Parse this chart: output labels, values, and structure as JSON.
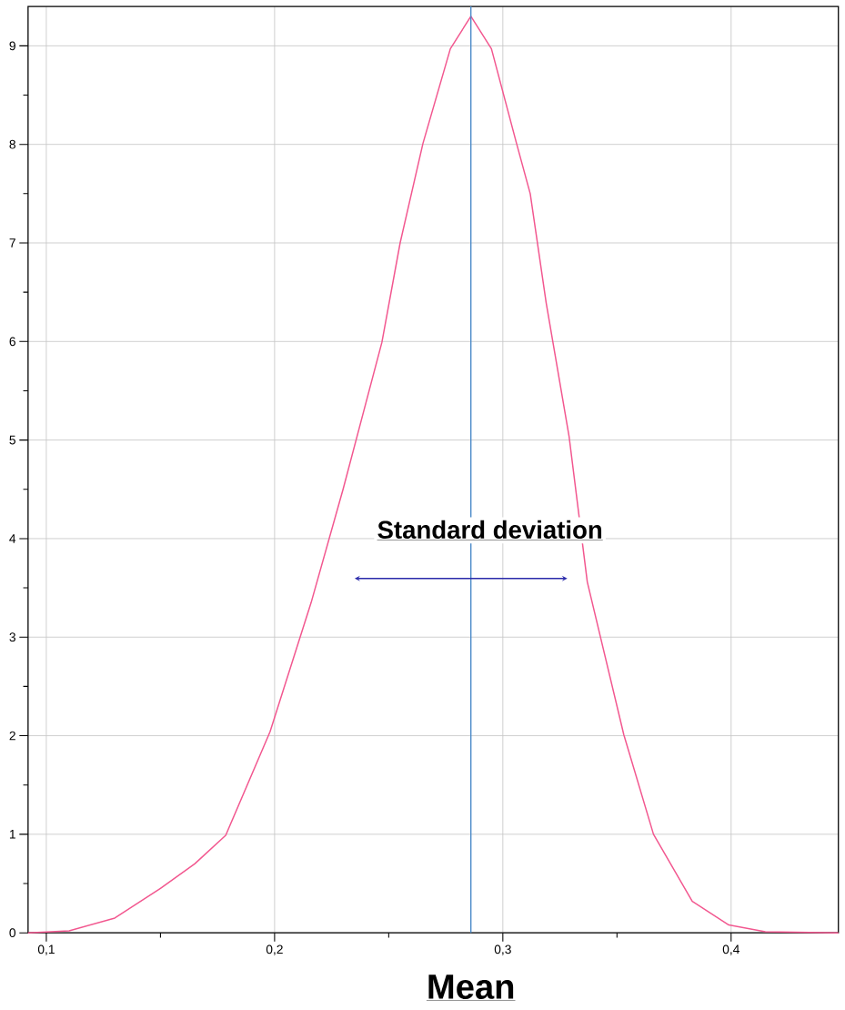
{
  "chart_data": {
    "type": "line",
    "color": "#f2578f",
    "x": [
      0.092,
      0.11,
      0.13,
      0.15,
      0.165,
      0.1786,
      0.198,
      0.216,
      0.23,
      0.247,
      0.255,
      0.265,
      0.277,
      0.286,
      0.295,
      0.306,
      0.312,
      0.319,
      0.329,
      0.337,
      0.353,
      0.366,
      0.383,
      0.399,
      0.415,
      0.447
    ],
    "values": [
      0,
      0.02,
      0.15,
      0.45,
      0.7,
      0.99,
      2.04,
      3.35,
      4.5,
      5.99,
      7.0,
      8.01,
      8.97,
      9.3,
      8.97,
      8.01,
      7.5,
      6.39,
      5.04,
      3.56,
      2.01,
      1.0,
      0.32,
      0.08,
      0.01,
      0
    ],
    "xlim": [
      0.092,
      0.447
    ],
    "ylim": [
      0,
      9.4
    ],
    "xticks": [
      {
        "value": 0.1,
        "label": "0,1"
      },
      {
        "value": 0.15,
        "label": null
      },
      {
        "value": 0.2,
        "label": "0,2"
      },
      {
        "value": 0.25,
        "label": null
      },
      {
        "value": 0.3,
        "label": "0,3"
      },
      {
        "value": 0.35,
        "label": null
      },
      {
        "value": 0.4,
        "label": "0,4"
      }
    ],
    "yticks": [
      0,
      {
        "value": 0.5,
        "label": null
      },
      1,
      {
        "value": 1.5,
        "label": null
      },
      2,
      {
        "value": 2.5,
        "label": null
      },
      3,
      {
        "value": 3.5,
        "label": null
      },
      4,
      {
        "value": 4.5,
        "label": null
      },
      5,
      {
        "value": 5.5,
        "label": null
      },
      6,
      {
        "value": 6.5,
        "label": null
      },
      7,
      {
        "value": 7.5,
        "label": null
      },
      8,
      {
        "value": 8.5,
        "label": null
      },
      9
    ],
    "grid": true,
    "ref_lines": [
      {
        "axis": "x",
        "value": 0.286,
        "label": "Mean",
        "color": "#4a8ac8"
      }
    ],
    "annotations": [
      "Standard deviation"
    ]
  }
}
